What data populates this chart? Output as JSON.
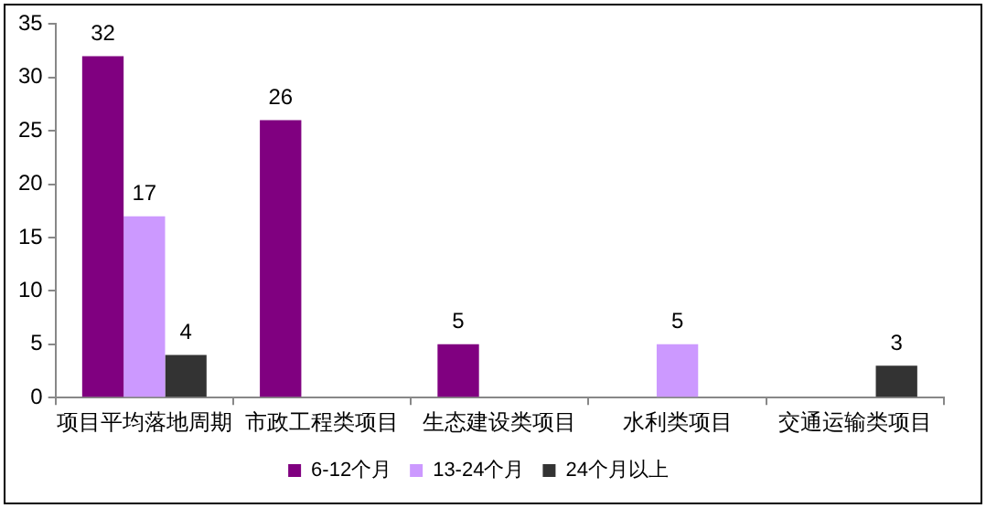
{
  "chart_data": {
    "type": "bar",
    "categories": [
      "项目平均落地周期",
      "市政工程类项目",
      "生态建设类项目",
      "水利类项目",
      "交通运输类项目"
    ],
    "series": [
      {
        "name": "6-12个月",
        "color": "#800080",
        "values": [
          32,
          26,
          5,
          null,
          null
        ]
      },
      {
        "name": "13-24个月",
        "color": "#cc99ff",
        "values": [
          17,
          null,
          null,
          5,
          null
        ]
      },
      {
        "name": "24个月以上",
        "color": "#333333",
        "values": [
          4,
          null,
          null,
          null,
          3
        ]
      }
    ],
    "ylim": [
      0,
      35
    ],
    "yticks": [
      0,
      5,
      10,
      15,
      20,
      25,
      30,
      35
    ],
    "grid": false,
    "legend": "bottom",
    "data_labels": true
  }
}
